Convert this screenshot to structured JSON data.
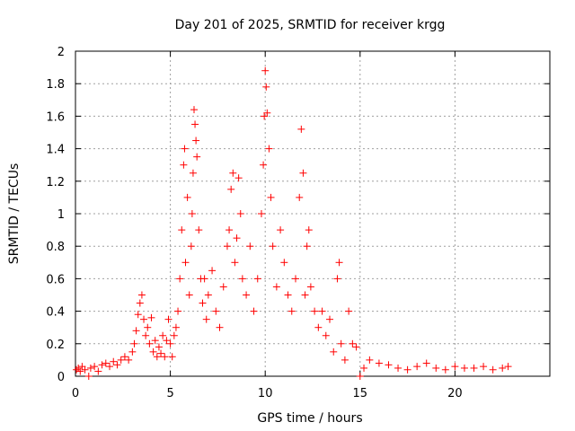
{
  "chart_data": {
    "type": "scatter",
    "title": "Day 201 of 2025, SRMTID for receiver krgg",
    "xlabel": "GPS time / hours",
    "ylabel": "SRMTID / TECUs",
    "xlim": [
      0,
      25
    ],
    "ylim": [
      0,
      2
    ],
    "xticks": [
      "0",
      "5",
      "10",
      "15",
      "20"
    ],
    "yticks": [
      "0",
      "0.2",
      "0.4",
      "0.6",
      "0.8",
      "1",
      "1.2",
      "1.4",
      "1.6",
      "1.8",
      "2"
    ],
    "grid": true,
    "marker": "plus",
    "color": "#ff0000",
    "series": [
      {
        "name": "SRMTID",
        "points": [
          [
            0.05,
            0.04
          ],
          [
            0.15,
            0.05
          ],
          [
            0.25,
            0.03
          ],
          [
            0.35,
            0.06
          ],
          [
            0.5,
            0.04
          ],
          [
            0.7,
            0.0
          ],
          [
            0.8,
            0.05
          ],
          [
            1.0,
            0.06
          ],
          [
            1.2,
            0.03
          ],
          [
            1.4,
            0.07
          ],
          [
            1.6,
            0.08
          ],
          [
            1.8,
            0.06
          ],
          [
            2.0,
            0.09
          ],
          [
            2.2,
            0.07
          ],
          [
            2.4,
            0.1
          ],
          [
            2.6,
            0.12
          ],
          [
            2.8,
            0.1
          ],
          [
            3.0,
            0.15
          ],
          [
            3.1,
            0.2
          ],
          [
            3.2,
            0.28
          ],
          [
            3.3,
            0.38
          ],
          [
            3.4,
            0.45
          ],
          [
            3.5,
            0.5
          ],
          [
            3.6,
            0.35
          ],
          [
            3.7,
            0.25
          ],
          [
            3.8,
            0.3
          ],
          [
            3.9,
            0.2
          ],
          [
            4.0,
            0.36
          ],
          [
            4.1,
            0.15
          ],
          [
            4.2,
            0.22
          ],
          [
            4.3,
            0.12
          ],
          [
            4.4,
            0.18
          ],
          [
            4.5,
            0.14
          ],
          [
            4.6,
            0.25
          ],
          [
            4.7,
            0.12
          ],
          [
            4.8,
            0.22
          ],
          [
            4.9,
            0.35
          ],
          [
            5.0,
            0.2
          ],
          [
            5.1,
            0.12
          ],
          [
            5.2,
            0.25
          ],
          [
            5.3,
            0.3
          ],
          [
            5.4,
            0.4
          ],
          [
            5.5,
            0.6
          ],
          [
            5.6,
            0.9
          ],
          [
            5.7,
            1.3
          ],
          [
            5.75,
            1.4
          ],
          [
            5.8,
            0.7
          ],
          [
            5.9,
            1.1
          ],
          [
            6.0,
            0.5
          ],
          [
            6.1,
            0.8
          ],
          [
            6.15,
            1.0
          ],
          [
            6.2,
            1.25
          ],
          [
            6.25,
            1.64
          ],
          [
            6.3,
            1.55
          ],
          [
            6.35,
            1.45
          ],
          [
            6.4,
            1.35
          ],
          [
            6.5,
            0.9
          ],
          [
            6.6,
            0.6
          ],
          [
            6.7,
            0.45
          ],
          [
            6.8,
            0.6
          ],
          [
            6.9,
            0.35
          ],
          [
            7.0,
            0.5
          ],
          [
            7.2,
            0.65
          ],
          [
            7.4,
            0.4
          ],
          [
            7.6,
            0.3
          ],
          [
            7.8,
            0.55
          ],
          [
            8.0,
            0.8
          ],
          [
            8.1,
            0.9
          ],
          [
            8.2,
            1.15
          ],
          [
            8.3,
            1.25
          ],
          [
            8.4,
            0.7
          ],
          [
            8.5,
            0.85
          ],
          [
            8.6,
            1.22
          ],
          [
            8.7,
            1.0
          ],
          [
            8.8,
            0.6
          ],
          [
            9.0,
            0.5
          ],
          [
            9.2,
            0.8
          ],
          [
            9.4,
            0.4
          ],
          [
            9.6,
            0.6
          ],
          [
            9.8,
            1.0
          ],
          [
            9.9,
            1.3
          ],
          [
            9.95,
            1.6
          ],
          [
            10.0,
            1.88
          ],
          [
            10.05,
            1.78
          ],
          [
            10.1,
            1.62
          ],
          [
            10.2,
            1.4
          ],
          [
            10.3,
            1.1
          ],
          [
            10.4,
            0.8
          ],
          [
            10.6,
            0.55
          ],
          [
            10.8,
            0.9
          ],
          [
            11.0,
            0.7
          ],
          [
            11.2,
            0.5
          ],
          [
            11.4,
            0.4
          ],
          [
            11.6,
            0.6
          ],
          [
            11.8,
            1.1
          ],
          [
            11.9,
            1.52
          ],
          [
            12.0,
            1.25
          ],
          [
            12.1,
            0.5
          ],
          [
            12.2,
            0.8
          ],
          [
            12.3,
            0.9
          ],
          [
            12.4,
            0.55
          ],
          [
            12.6,
            0.4
          ],
          [
            12.8,
            0.3
          ],
          [
            13.0,
            0.4
          ],
          [
            13.2,
            0.25
          ],
          [
            13.4,
            0.35
          ],
          [
            13.6,
            0.15
          ],
          [
            13.8,
            0.6
          ],
          [
            13.9,
            0.7
          ],
          [
            14.0,
            0.2
          ],
          [
            14.2,
            0.1
          ],
          [
            14.4,
            0.4
          ],
          [
            14.6,
            0.2
          ],
          [
            14.8,
            0.18
          ],
          [
            15.0,
            0.0
          ],
          [
            15.2,
            0.05
          ],
          [
            15.5,
            0.1
          ],
          [
            16.0,
            0.08
          ],
          [
            16.5,
            0.07
          ],
          [
            17.0,
            0.05
          ],
          [
            17.5,
            0.04
          ],
          [
            18.0,
            0.06
          ],
          [
            18.5,
            0.08
          ],
          [
            19.0,
            0.05
          ],
          [
            19.5,
            0.04
          ],
          [
            20.0,
            0.06
          ],
          [
            20.5,
            0.05
          ],
          [
            21.0,
            0.05
          ],
          [
            21.5,
            0.06
          ],
          [
            22.0,
            0.04
          ],
          [
            22.5,
            0.05
          ],
          [
            22.8,
            0.06
          ]
        ]
      }
    ]
  }
}
